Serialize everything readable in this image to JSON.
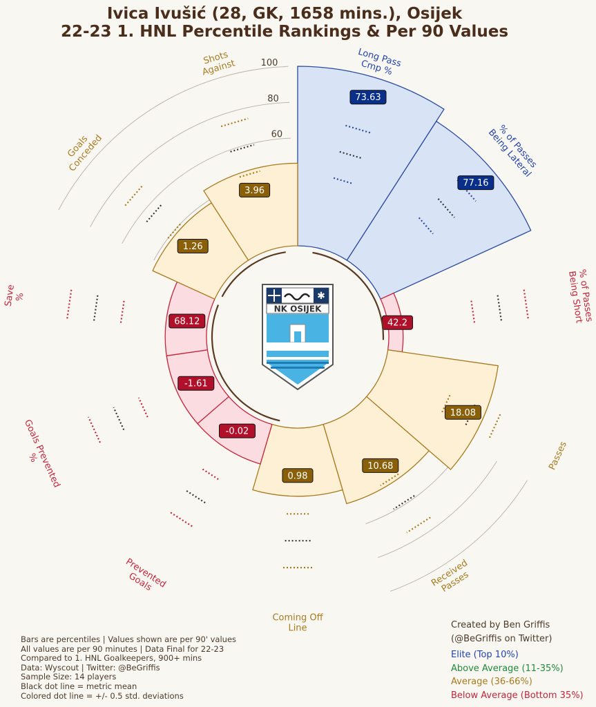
{
  "title_line1": "Ivica Ivušić (28, GK, 1658 mins.), Osijek",
  "title_line2": "22-23 1. HNL Percentile Rankings & Per 90 Values",
  "logo_text": "NK OSIJEK",
  "colors": {
    "elite_fill": "#d8e3f5",
    "elite_edge": "#2a4aa0",
    "elite_text": "#2244aa",
    "elite_label_bg": "#0a2f8a",
    "average_fill": "#fdf0d5",
    "average_edge": "#a87a1e",
    "average_text": "#a87a1e",
    "average_label_bg": "#8a5f0a",
    "below_fill": "#fbdde1",
    "below_edge": "#c5253c",
    "below_text": "#c5253c",
    "below_label_bg": "#b0102a",
    "above_text": "#1f8a3a",
    "mean_dots": "#333333",
    "background": "#f9f7f2"
  },
  "chart_data": {
    "type": "polar-bar",
    "title": "Ivica Ivušić (28, GK, 1658 mins.), Osijek — 22-23 1. HNL Percentile Rankings & Per 90 Values",
    "radial_axis": {
      "range": [
        0,
        100
      ],
      "ticks": [
        "0",
        "20",
        "40",
        "60",
        "80",
        "100"
      ]
    },
    "metrics": [
      {
        "label": "Long Pass Cmp %",
        "percentile": 100,
        "value": "73.63",
        "tier": "elite"
      },
      {
        "label": "% of Passes Being Lateral",
        "percentile": 92,
        "value": "77.16",
        "tier": "elite"
      },
      {
        "label": "% of Passes Being Short",
        "percentile": 8,
        "value": "42.2",
        "tier": "below"
      },
      {
        "label": "Passes",
        "percentile": 62,
        "value": "18.08",
        "tier": "average"
      },
      {
        "label": "Received Passes",
        "percentile": 46,
        "value": "10.68",
        "tier": "average"
      },
      {
        "label": "Coming Off Line",
        "percentile": 38,
        "value": "0.98",
        "tier": "average"
      },
      {
        "label": "Prevented Goals",
        "percentile": 23,
        "value": "-0.02",
        "tier": "below"
      },
      {
        "label": "Goals Prevented %",
        "percentile": 23,
        "value": "-1.61",
        "tier": "below"
      },
      {
        "label": "Save %",
        "percentile": 23,
        "value": "68.12",
        "tier": "below"
      },
      {
        "label": "Goals Conceded",
        "percentile": 38,
        "value": "1.26",
        "tier": "average"
      },
      {
        "label": "Shots Against",
        "percentile": 46,
        "value": "3.96",
        "tier": "average"
      }
    ]
  },
  "credit": [
    "Created by Ben Griffis",
    "(@BeGriffis on Twitter)"
  ],
  "legend": [
    {
      "label": "Elite (Top 10%)",
      "tier": "elite"
    },
    {
      "label": "Above Average (11-35%)",
      "tier": "above"
    },
    {
      "label": "Average (36-66%)",
      "tier": "average"
    },
    {
      "label": "Below Average (Bottom 35%)",
      "tier": "below"
    }
  ],
  "notes": [
    "Bars are percentiles | Values shown are per 90' values",
    "All values are per 90 minutes | Data Final for 22-23",
    "Compared to 1. HNL Goalkeepers, 900+ mins",
    "Data: Wyscout | Twitter: @BeGriffis",
    "Sample Size: 14 players",
    "Black dot line = metric mean",
    "Colored dot line = +/- 0.5 std. deviations"
  ]
}
